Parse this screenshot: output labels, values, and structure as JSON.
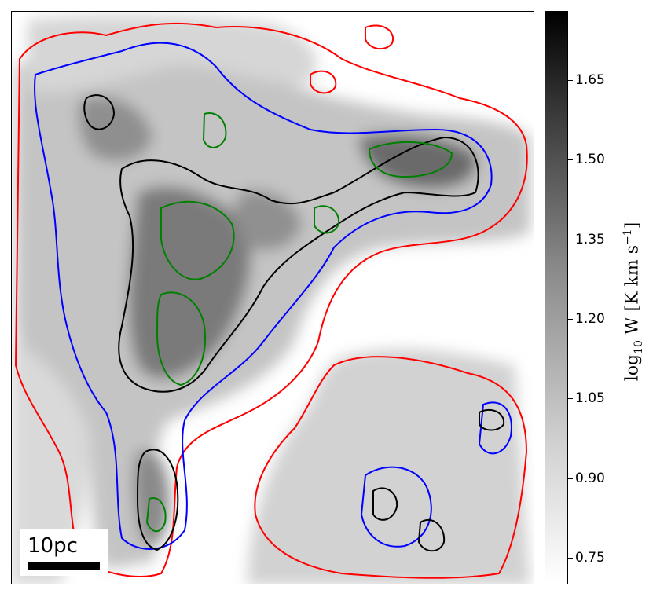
{
  "chart_data": {
    "type": "heatmap",
    "title": "",
    "colormap": "gray_r",
    "colorbar": {
      "label": "log10 W [K km s−1]",
      "label_parts": {
        "prefix": "log",
        "sub": "10",
        "var": " W ",
        "unit": "[K km s",
        "exp": "−1",
        "close": "]"
      },
      "ticks": [
        "1.65",
        "1.50",
        "1.35",
        "1.20",
        "1.05",
        "0.90",
        "0.75"
      ],
      "tick_values": [
        1.65,
        1.5,
        1.35,
        1.2,
        1.05,
        0.9,
        0.75
      ],
      "range": [
        0.7,
        1.78
      ]
    },
    "scalebar": {
      "label": "10pc"
    },
    "contours": [
      {
        "color": "#ff0000",
        "name": "red"
      },
      {
        "color": "#0000ff",
        "name": "blue"
      },
      {
        "color": "#000000",
        "name": "black"
      },
      {
        "color": "#008000",
        "name": "green"
      }
    ]
  }
}
